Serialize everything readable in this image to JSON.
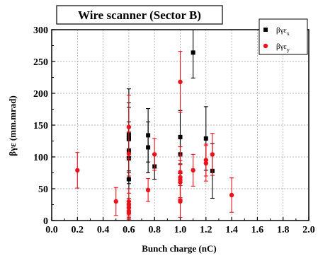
{
  "chart_data": {
    "type": "scatter",
    "title": "Wire scanner (Sector B)",
    "xlabel": "Bunch charge (nC)",
    "ylabel": "βγε (mm.mrad)",
    "xlim": [
      0.0,
      2.0
    ],
    "ylim": [
      0,
      300
    ],
    "xticks": [
      "0.0",
      "0.2",
      "0.4",
      "0.6",
      "0.8",
      "1.0",
      "1.2",
      "1.4",
      "1.6",
      "1.8",
      "2.0"
    ],
    "yticks": [
      "0",
      "50",
      "100",
      "150",
      "200",
      "250",
      "300"
    ],
    "grid": true,
    "legend_position": "top-right",
    "series": [
      {
        "name_base": "βγε",
        "name_sub": "x",
        "color": "#000000",
        "marker": "square",
        "points": [
          {
            "x": 0.6,
            "y": 135,
            "err": 72
          },
          {
            "x": 0.6,
            "y": 130,
            "err": 55
          },
          {
            "x": 0.6,
            "y": 128,
            "err": 50
          },
          {
            "x": 0.6,
            "y": 110,
            "err": 45
          },
          {
            "x": 0.6,
            "y": 98,
            "err": 40
          },
          {
            "x": 0.6,
            "y": 65,
            "err": 30
          },
          {
            "x": 0.75,
            "y": 134,
            "err": 42
          },
          {
            "x": 0.75,
            "y": 115,
            "err": 40
          },
          {
            "x": 0.8,
            "y": 85,
            "err": 20
          },
          {
            "x": 1.0,
            "y": 131,
            "err": 42
          },
          {
            "x": 1.0,
            "y": 104,
            "err": 30
          },
          {
            "x": 1.1,
            "y": 264,
            "err": 40
          },
          {
            "x": 1.2,
            "y": 129,
            "err": 50
          },
          {
            "x": 1.25,
            "y": 78,
            "err": 43
          }
        ]
      },
      {
        "name_base": "βγε",
        "name_sub": "y",
        "color": "#e8131b",
        "marker": "circle",
        "points": [
          {
            "x": 0.2,
            "y": 79,
            "err": 28
          },
          {
            "x": 0.5,
            "y": 30,
            "err": 22
          },
          {
            "x": 0.6,
            "y": 147,
            "err": 50
          },
          {
            "x": 0.6,
            "y": 105,
            "err": 35
          },
          {
            "x": 0.6,
            "y": 30,
            "err": 20
          },
          {
            "x": 0.6,
            "y": 25,
            "err": 18
          },
          {
            "x": 0.6,
            "y": 20,
            "err": 15
          },
          {
            "x": 0.6,
            "y": 15,
            "err": 12
          },
          {
            "x": 0.6,
            "y": 12,
            "err": 10
          },
          {
            "x": 0.75,
            "y": 48,
            "err": 18
          },
          {
            "x": 0.8,
            "y": 104,
            "err": 25
          },
          {
            "x": 1.0,
            "y": 218,
            "err": 48
          },
          {
            "x": 1.0,
            "y": 76,
            "err": 40
          },
          {
            "x": 1.0,
            "y": 68,
            "err": 35
          },
          {
            "x": 1.0,
            "y": 64,
            "err": 30
          },
          {
            "x": 1.0,
            "y": 60,
            "err": 28
          },
          {
            "x": 1.0,
            "y": 30,
            "err": 25
          },
          {
            "x": 1.1,
            "y": 79,
            "err": 25
          },
          {
            "x": 1.2,
            "y": 95,
            "err": 25
          },
          {
            "x": 1.2,
            "y": 90,
            "err": 28
          },
          {
            "x": 1.25,
            "y": 104,
            "err": 33
          },
          {
            "x": 1.4,
            "y": 40,
            "err": 27
          }
        ]
      }
    ]
  }
}
